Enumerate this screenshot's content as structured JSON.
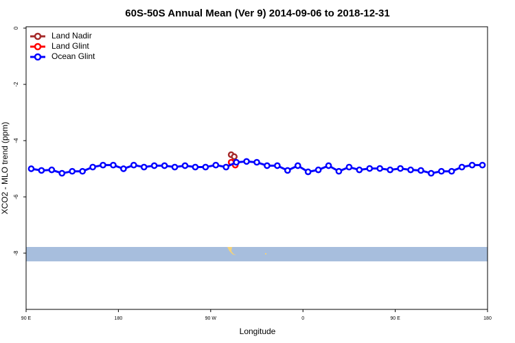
{
  "chart_data": {
    "type": "line",
    "title": "60S-50S Annual Mean (Ver 9)   2014-09-06 to 2018-12-31",
    "x_label": "Longitude",
    "y_label": "XCO2 - MLO trend (ppm)",
    "xlim": [
      90,
      540
    ],
    "xticks": [
      {
        "value": 90,
        "label": "90 E"
      },
      {
        "value": 180,
        "label": "180"
      },
      {
        "value": 270,
        "label": "90 W"
      },
      {
        "value": 360,
        "label": "0"
      },
      {
        "value": 450,
        "label": "90 E"
      },
      {
        "value": 540,
        "label": "180"
      }
    ],
    "ylim": [
      -10,
      0
    ],
    "yticks": [
      0,
      -2,
      -4,
      -6,
      -8
    ],
    "legend": "top-left",
    "series": [
      {
        "name": "Land Nadir",
        "color": "#a52a2a",
        "x": [
          290,
          293
        ],
        "values": [
          -4.5,
          -4.57
        ]
      },
      {
        "name": "Land Glint",
        "color": "#ff0000",
        "x": [
          290,
          294
        ],
        "values": [
          -4.77,
          -4.87
        ]
      },
      {
        "name": "Ocean Glint",
        "color": "#0000ff",
        "x": [
          95,
          105,
          115,
          125,
          135,
          145,
          155,
          165,
          175,
          185,
          195,
          205,
          215,
          225,
          235,
          245,
          255,
          265,
          275,
          285,
          295,
          305,
          315,
          325,
          335,
          345,
          355,
          365,
          375,
          385,
          395,
          405,
          415,
          425,
          435,
          445,
          455,
          465,
          475,
          485,
          495,
          505,
          515,
          525,
          535
        ],
        "values": [
          -5.0,
          -5.06,
          -5.04,
          -5.16,
          -5.09,
          -5.09,
          -4.94,
          -4.87,
          -4.87,
          -5.0,
          -4.87,
          -4.94,
          -4.89,
          -4.89,
          -4.94,
          -4.89,
          -4.94,
          -4.94,
          -4.87,
          -4.94,
          -4.77,
          -4.74,
          -4.77,
          -4.89,
          -4.89,
          -5.06,
          -4.89,
          -5.11,
          -5.04,
          -4.89,
          -5.09,
          -4.94,
          -5.04,
          -4.99,
          -4.99,
          -5.04,
          -4.99,
          -5.04,
          -5.06,
          -5.16,
          -5.09,
          -5.09,
          -4.94,
          -4.87,
          -4.87
        ]
      }
    ]
  }
}
